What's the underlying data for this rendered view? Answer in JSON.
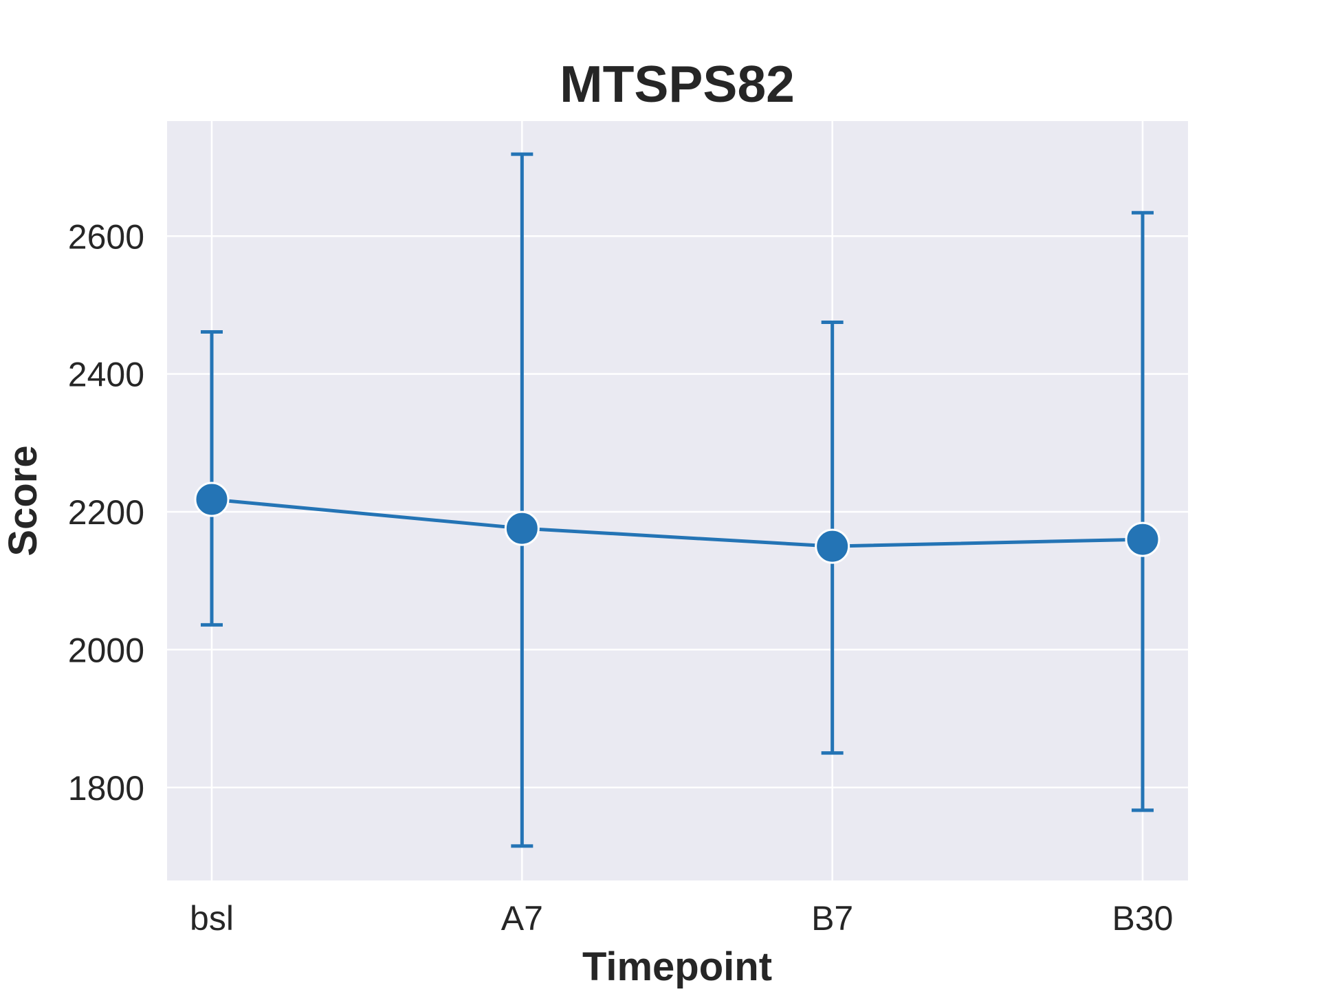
{
  "chart_data": {
    "type": "line",
    "title": "MTSPS82",
    "xlabel": "Timepoint",
    "ylabel": "Score",
    "categories": [
      "bsl",
      "A7",
      "B7",
      "B30"
    ],
    "series": [
      {
        "values": [
          2218,
          2176,
          2150,
          2160
        ],
        "error_low": [
          2036,
          1715,
          1850,
          1767
        ],
        "error_high": [
          2461,
          2719,
          2475,
          2634
        ],
        "color": "#2474b5"
      }
    ],
    "ylim": [
      1665,
      2767
    ],
    "yticks": [
      1800,
      2000,
      2200,
      2400,
      2600
    ],
    "ytick_labels": [
      "1800",
      "2000",
      "2200",
      "2400",
      "2600"
    ],
    "grid": true,
    "legend": "none",
    "colors": {
      "plot_background": "#eaeaf2",
      "grid": "#ffffff",
      "text": "#262626"
    }
  }
}
